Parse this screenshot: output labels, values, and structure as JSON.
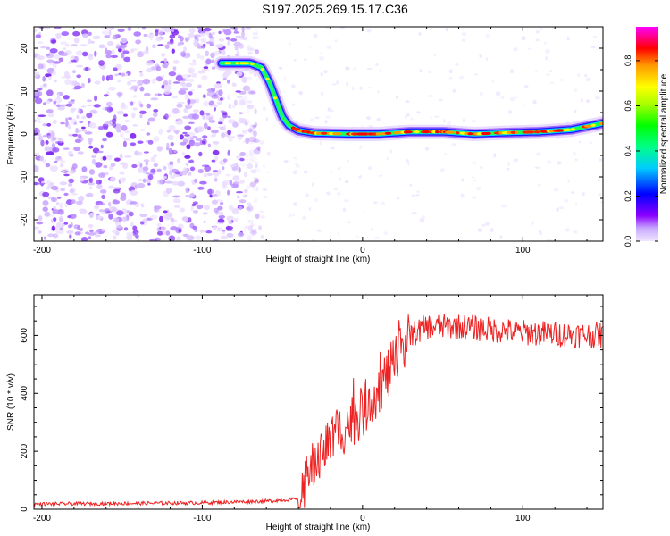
{
  "title": "S197.2025.269.15.17.C36",
  "chart_data": [
    {
      "type": "heatmap",
      "xlabel": "Height of straight line (km)",
      "ylabel": "Frequency (Hz)",
      "xlim": [
        -205,
        150
      ],
      "ylim": [
        -25,
        25
      ],
      "x_ticks": [
        -200,
        -100,
        0,
        100
      ],
      "x_tick_labels": [
        "-200",
        "-100",
        "0",
        "100"
      ],
      "y_ticks": [
        20,
        10,
        0,
        -10,
        -20
      ],
      "y_tick_labels": [
        "20",
        "10",
        "0",
        "-10",
        "-20"
      ],
      "noise_region_x": [
        -205,
        -75
      ],
      "signal_track": {
        "x": [
          -88,
          -70,
          -63,
          -58,
          -54,
          -50,
          -46,
          -40,
          -30,
          -10,
          10,
          30,
          50,
          70,
          90,
          110,
          130,
          150
        ],
        "y": [
          16.5,
          16.5,
          15.5,
          12,
          8,
          4,
          2,
          0.8,
          0.2,
          0,
          0,
          0.5,
          0.5,
          0,
          0.3,
          0.5,
          1.0,
          2.5
        ]
      },
      "colorbar": {
        "label": "Normalized spectral amplitude",
        "range": [
          0,
          0.95
        ],
        "ticks": [
          0.0,
          0.2,
          0.4,
          0.6,
          0.8
        ],
        "tick_labels": [
          "0.0",
          "0.2",
          "0.4",
          "0.6",
          "0.8"
        ]
      }
    },
    {
      "type": "line",
      "xlabel": "Height of straight line (km)",
      "ylabel": "SNR (10 * v/v)",
      "xlim": [
        -205,
        150
      ],
      "ylim": [
        0,
        740
      ],
      "x_ticks": [
        -200,
        -100,
        0,
        100
      ],
      "x_tick_labels": [
        "-200",
        "-100",
        "0",
        "100"
      ],
      "y_ticks": [
        0,
        200,
        400,
        600
      ],
      "y_tick_labels": [
        "0",
        "200",
        "400",
        "600"
      ],
      "series": [
        {
          "name": "SNR",
          "color": "#ee2222",
          "x": [
            -205,
            -150,
            -100,
            -60,
            -40,
            -36,
            -30,
            -20,
            -10,
            0,
            10,
            20,
            30,
            40,
            60,
            80,
            100,
            120,
            150
          ],
          "y": [
            18,
            20,
            22,
            28,
            35,
            80,
            160,
            240,
            290,
            340,
            420,
            500,
            600,
            630,
            630,
            620,
            610,
            605,
            600
          ]
        }
      ]
    }
  ]
}
